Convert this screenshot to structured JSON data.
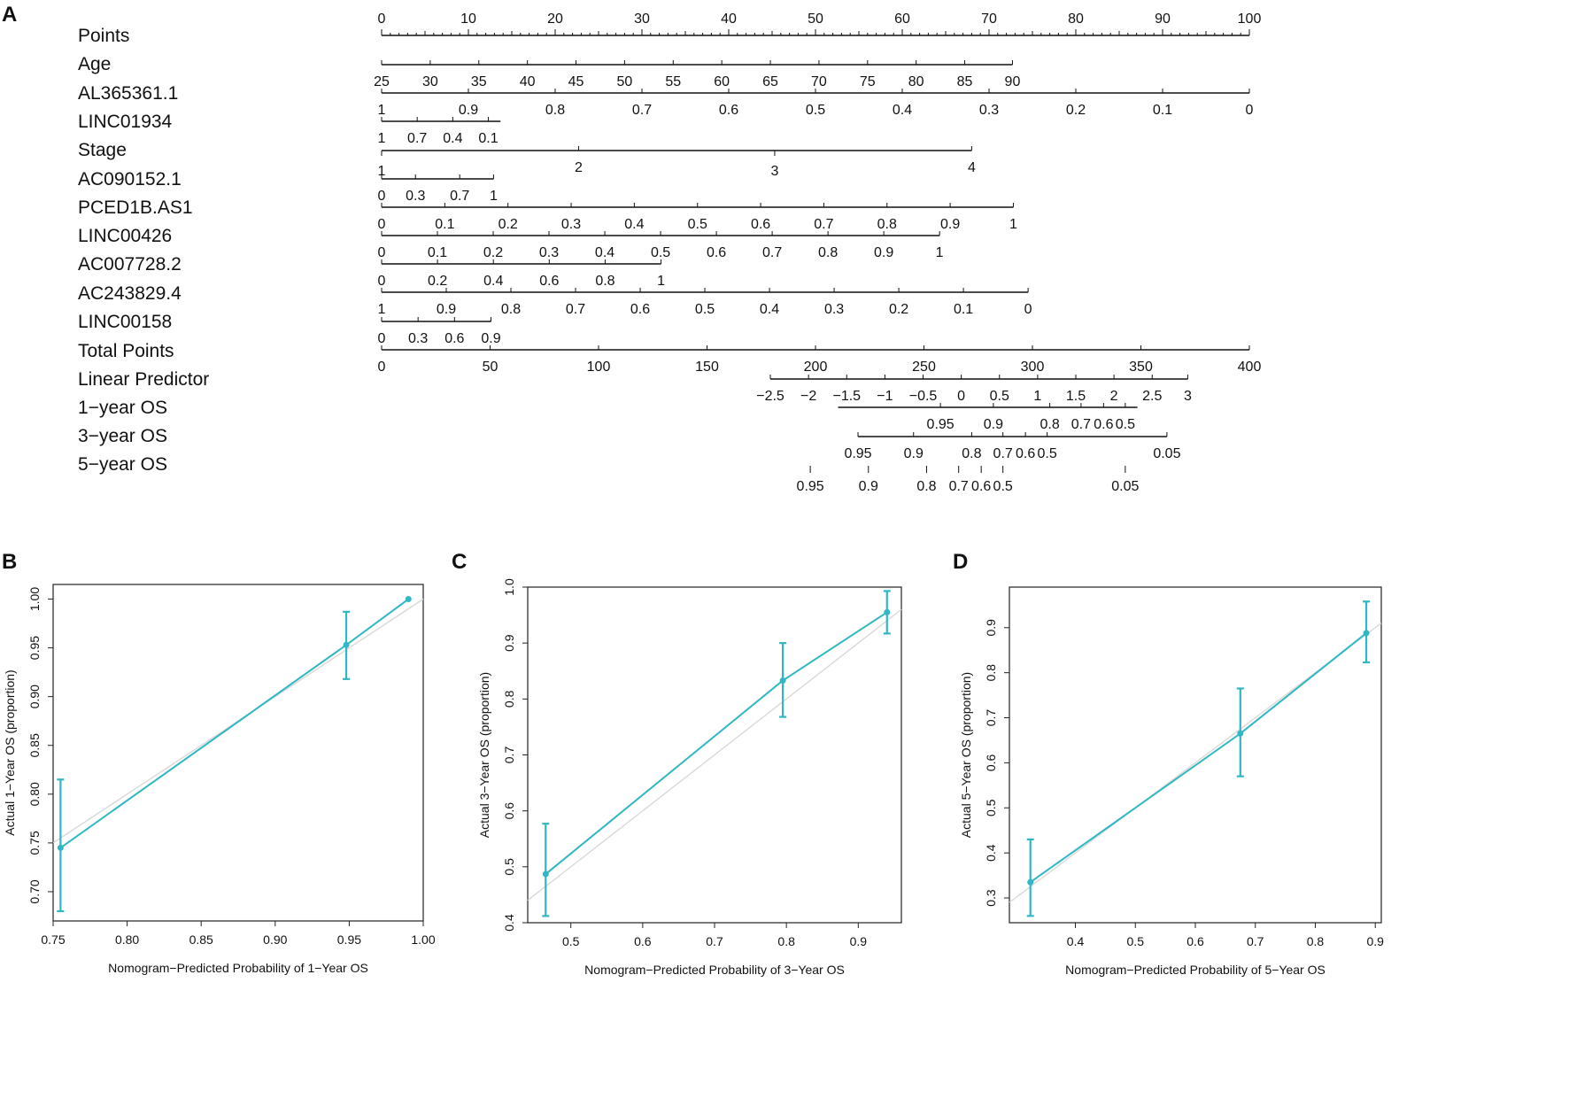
{
  "panels": {
    "a": "A",
    "b": "B",
    "c": "C",
    "d": "D"
  },
  "nomogram": {
    "rows": [
      {
        "label": "Points",
        "lo": 0,
        "hi": 100,
        "ticks": [
          {
            "v": 0,
            "t": "0"
          },
          {
            "v": 10,
            "t": "10"
          },
          {
            "v": 20,
            "t": "20"
          },
          {
            "v": 30,
            "t": "30"
          },
          {
            "v": 40,
            "t": "40"
          },
          {
            "v": 50,
            "t": "50"
          },
          {
            "v": 60,
            "t": "60"
          },
          {
            "v": 70,
            "t": "70"
          },
          {
            "v": 80,
            "t": "80"
          },
          {
            "v": 90,
            "t": "90"
          },
          {
            "v": 100,
            "t": "100"
          }
        ]
      },
      {
        "label": "Age",
        "lo": 0,
        "hi": 72.7,
        "ticks": [
          {
            "v": 0,
            "t": "25"
          },
          {
            "v": 5.6,
            "t": "30"
          },
          {
            "v": 11.2,
            "t": "35"
          },
          {
            "v": 16.8,
            "t": "40"
          },
          {
            "v": 22.4,
            "t": "45"
          },
          {
            "v": 28,
            "t": "50"
          },
          {
            "v": 33.6,
            "t": "55"
          },
          {
            "v": 39.2,
            "t": "60"
          },
          {
            "v": 44.8,
            "t": "65"
          },
          {
            "v": 50.4,
            "t": "70"
          },
          {
            "v": 56,
            "t": "75"
          },
          {
            "v": 61.6,
            "t": "80"
          },
          {
            "v": 67.2,
            "t": "85"
          },
          {
            "v": 72.7,
            "t": "90"
          }
        ]
      },
      {
        "label": "AL365361.1",
        "lo": 0,
        "hi": 100,
        "ticks": [
          {
            "v": 0,
            "t": "1"
          },
          {
            "v": 10,
            "t": "0.9"
          },
          {
            "v": 20,
            "t": "0.8"
          },
          {
            "v": 30,
            "t": "0.7"
          },
          {
            "v": 40,
            "t": "0.6"
          },
          {
            "v": 50,
            "t": "0.5"
          },
          {
            "v": 60,
            "t": "0.4"
          },
          {
            "v": 70,
            "t": "0.3"
          },
          {
            "v": 80,
            "t": "0.2"
          },
          {
            "v": 90,
            "t": "0.1"
          },
          {
            "v": 100,
            "t": "0"
          }
        ]
      },
      {
        "label": "LINC01934",
        "lo": 0,
        "hi": 13.7,
        "ticks": [
          {
            "v": 0,
            "t": "1"
          },
          {
            "v": 4.1,
            "t": "0.7"
          },
          {
            "v": 8.2,
            "t": "0.4"
          },
          {
            "v": 12.3,
            "t": "0.1"
          }
        ]
      },
      {
        "label": "Stage",
        "lo": 0,
        "hi": 68,
        "ticks": [
          {
            "v": 0,
            "t": "1",
            "pos": "below"
          },
          {
            "v": 22.7,
            "t": "2",
            "pos": "above"
          },
          {
            "v": 45.3,
            "t": "3",
            "pos": "below"
          },
          {
            "v": 68,
            "t": "4",
            "pos": "above"
          }
        ]
      },
      {
        "label": "AC090152.1",
        "lo": 0,
        "hi": 12.9,
        "ticks": [
          {
            "v": 0,
            "t": "0"
          },
          {
            "v": 3.9,
            "t": "0.3"
          },
          {
            "v": 9,
            "t": "0.7"
          },
          {
            "v": 12.9,
            "t": "1"
          }
        ]
      },
      {
        "label": "PCED1B.AS1",
        "lo": 0,
        "hi": 72.8,
        "ticks": [
          {
            "v": 0,
            "t": "0"
          },
          {
            "v": 7.28,
            "t": "0.1"
          },
          {
            "v": 14.56,
            "t": "0.2"
          },
          {
            "v": 21.84,
            "t": "0.3"
          },
          {
            "v": 29.12,
            "t": "0.4"
          },
          {
            "v": 36.4,
            "t": "0.5"
          },
          {
            "v": 43.68,
            "t": "0.6"
          },
          {
            "v": 50.96,
            "t": "0.7"
          },
          {
            "v": 58.24,
            "t": "0.8"
          },
          {
            "v": 65.52,
            "t": "0.9"
          },
          {
            "v": 72.8,
            "t": "1"
          }
        ]
      },
      {
        "label": "LINC00426",
        "lo": 0,
        "hi": 64.3,
        "ticks": [
          {
            "v": 0,
            "t": "0"
          },
          {
            "v": 6.43,
            "t": "0.1"
          },
          {
            "v": 12.86,
            "t": "0.2"
          },
          {
            "v": 19.29,
            "t": "0.3"
          },
          {
            "v": 25.72,
            "t": "0.4"
          },
          {
            "v": 32.15,
            "t": "0.5"
          },
          {
            "v": 38.58,
            "t": "0.6"
          },
          {
            "v": 45.01,
            "t": "0.7"
          },
          {
            "v": 51.44,
            "t": "0.8"
          },
          {
            "v": 57.87,
            "t": "0.9"
          },
          {
            "v": 64.3,
            "t": "1"
          }
        ]
      },
      {
        "label": "AC007728.2",
        "lo": 0,
        "hi": 32.2,
        "ticks": [
          {
            "v": 0,
            "t": "0"
          },
          {
            "v": 6.44,
            "t": "0.2"
          },
          {
            "v": 12.88,
            "t": "0.4"
          },
          {
            "v": 19.32,
            "t": "0.6"
          },
          {
            "v": 25.76,
            "t": "0.8"
          },
          {
            "v": 32.2,
            "t": "1"
          }
        ]
      },
      {
        "label": "AC243829.4",
        "lo": 0,
        "hi": 74.5,
        "ticks": [
          {
            "v": 0,
            "t": "1"
          },
          {
            "v": 7.45,
            "t": "0.9"
          },
          {
            "v": 14.9,
            "t": "0.8"
          },
          {
            "v": 22.35,
            "t": "0.7"
          },
          {
            "v": 29.8,
            "t": "0.6"
          },
          {
            "v": 37.25,
            "t": "0.5"
          },
          {
            "v": 44.7,
            "t": "0.4"
          },
          {
            "v": 52.15,
            "t": "0.3"
          },
          {
            "v": 59.6,
            "t": "0.2"
          },
          {
            "v": 67.05,
            "t": "0.1"
          },
          {
            "v": 74.5,
            "t": "0"
          }
        ]
      },
      {
        "label": "LINC00158",
        "lo": 0,
        "hi": 12.6,
        "ticks": [
          {
            "v": 0,
            "t": "0"
          },
          {
            "v": 4.2,
            "t": "0.3"
          },
          {
            "v": 8.4,
            "t": "0.6"
          },
          {
            "v": 12.6,
            "t": "0.9"
          }
        ]
      },
      {
        "label": "Total Points",
        "lo": 0,
        "hi": 100,
        "ticks": [
          {
            "v": 0,
            "t": "0"
          },
          {
            "v": 12.5,
            "t": "50"
          },
          {
            "v": 25,
            "t": "100"
          },
          {
            "v": 37.5,
            "t": "150"
          },
          {
            "v": 50,
            "t": "200"
          },
          {
            "v": 62.5,
            "t": "250"
          },
          {
            "v": 75,
            "t": "300"
          },
          {
            "v": 87.5,
            "t": "350"
          },
          {
            "v": 100,
            "t": "400"
          }
        ]
      },
      {
        "label": "Linear Predictor",
        "lo": 44.8,
        "hi": 92.9,
        "ticks": [
          {
            "v": 44.8,
            "t": "−2.5"
          },
          {
            "v": 49.2,
            "t": "−2"
          },
          {
            "v": 53.6,
            "t": "−1.5"
          },
          {
            "v": 58,
            "t": "−1"
          },
          {
            "v": 62.4,
            "t": "−0.5"
          },
          {
            "v": 66.8,
            "t": "0"
          },
          {
            "v": 71.2,
            "t": "0.5"
          },
          {
            "v": 75.6,
            "t": "1"
          },
          {
            "v": 80,
            "t": "1.5"
          },
          {
            "v": 84.4,
            "t": "2"
          },
          {
            "v": 88.8,
            "t": "2.5"
          },
          {
            "v": 92.9,
            "t": "3"
          }
        ]
      },
      {
        "label": "1−year OS",
        "lo": 52.6,
        "hi": 87.1,
        "ticks": [
          {
            "v": 64.4,
            "t": "0.95"
          },
          {
            "v": 70.5,
            "t": "0.9"
          },
          {
            "v": 77,
            "t": "0.8"
          },
          {
            "v": 80.6,
            "t": "0.7"
          },
          {
            "v": 83.2,
            "t": "0.6"
          },
          {
            "v": 85.7,
            "t": "0.5"
          }
        ]
      },
      {
        "label": "3−year OS",
        "lo": 54.9,
        "hi": 90.5,
        "ticks": [
          {
            "v": 54.9,
            "t": "0.95"
          },
          {
            "v": 61.3,
            "t": "0.9"
          },
          {
            "v": 68,
            "t": "0.8"
          },
          {
            "v": 71.6,
            "t": "0.7"
          },
          {
            "v": 74.2,
            "t": "0.6"
          },
          {
            "v": 76.7,
            "t": "0.5"
          },
          {
            "v": 90.5,
            "t": "0.05"
          }
        ]
      },
      {
        "label": "5−year OS",
        "lo": 49.4,
        "hi": 85.7,
        "ticks": [
          {
            "v": 49.4,
            "t": "0.95"
          },
          {
            "v": 56.1,
            "t": "0.9"
          },
          {
            "v": 62.8,
            "t": "0.8"
          },
          {
            "v": 66.5,
            "t": "0.7"
          },
          {
            "v": 69.1,
            "t": "0.6"
          },
          {
            "v": 71.6,
            "t": "0.5"
          },
          {
            "v": 85.7,
            "t": "0.05"
          }
        ]
      }
    ]
  },
  "chart_data": [
    {
      "panel": "B",
      "type": "scatter",
      "xlabel": "Nomogram−Predicted Probability of 1−Year OS",
      "ylabel": "Actual 1−Year OS (proportion)",
      "xlim": [
        0.75,
        1.0
      ],
      "ylim": [
        0.67,
        1.015
      ],
      "xticks": [
        {
          "v": 0.75,
          "t": "0.75"
        },
        {
          "v": 0.8,
          "t": "0.80"
        },
        {
          "v": 0.85,
          "t": "0.85"
        },
        {
          "v": 0.9,
          "t": "0.90"
        },
        {
          "v": 0.95,
          "t": "0.95"
        },
        {
          "v": 1.0,
          "t": "1.00"
        }
      ],
      "yticks": [
        {
          "v": 0.7,
          "t": "0.70"
        },
        {
          "v": 0.75,
          "t": "0.75"
        },
        {
          "v": 0.8,
          "t": "0.80"
        },
        {
          "v": 0.85,
          "t": "0.85"
        },
        {
          "v": 0.9,
          "t": "0.90"
        },
        {
          "v": 0.95,
          "t": "0.95"
        },
        {
          "v": 1.0,
          "t": "1.00"
        }
      ],
      "points": [
        {
          "x": 0.755,
          "y": 0.745,
          "lo": 0.68,
          "hi": 0.815
        },
        {
          "x": 0.948,
          "y": 0.953,
          "lo": 0.918,
          "hi": 0.987
        },
        {
          "x": 0.99,
          "y": 1.0,
          "lo": 1.0,
          "hi": 1.0
        }
      ],
      "line_color": "#2fb7c4",
      "ideal_color": "#d8d8d8"
    },
    {
      "panel": "C",
      "type": "scatter",
      "xlabel": "Nomogram−Predicted Probability of 3−Year OS",
      "ylabel": "Actual 3−Year OS (proportion)",
      "xlim": [
        0.44,
        0.96
      ],
      "ylim": [
        0.4,
        1.0
      ],
      "xticks": [
        {
          "v": 0.5,
          "t": "0.5"
        },
        {
          "v": 0.6,
          "t": "0.6"
        },
        {
          "v": 0.7,
          "t": "0.7"
        },
        {
          "v": 0.8,
          "t": "0.8"
        },
        {
          "v": 0.9,
          "t": "0.9"
        }
      ],
      "yticks": [
        {
          "v": 0.4,
          "t": "0.4"
        },
        {
          "v": 0.5,
          "t": "0.5"
        },
        {
          "v": 0.6,
          "t": "0.6"
        },
        {
          "v": 0.7,
          "t": "0.7"
        },
        {
          "v": 0.8,
          "t": "0.8"
        },
        {
          "v": 0.9,
          "t": "0.9"
        },
        {
          "v": 1.0,
          "t": "1.0"
        }
      ],
      "points": [
        {
          "x": 0.465,
          "y": 0.487,
          "lo": 0.412,
          "hi": 0.577
        },
        {
          "x": 0.795,
          "y": 0.833,
          "lo": 0.768,
          "hi": 0.9
        },
        {
          "x": 0.94,
          "y": 0.955,
          "lo": 0.917,
          "hi": 0.993
        }
      ],
      "line_color": "#2fb7c4",
      "ideal_color": "#d8d8d8"
    },
    {
      "panel": "D",
      "type": "scatter",
      "xlabel": "Nomogram−Predicted Probability of 5−Year OS",
      "ylabel": "Actual 5−Year OS (proportion)",
      "xlim": [
        0.29,
        0.91
      ],
      "ylim": [
        0.245,
        0.99
      ],
      "xticks": [
        {
          "v": 0.4,
          "t": "0.4"
        },
        {
          "v": 0.5,
          "t": "0.5"
        },
        {
          "v": 0.6,
          "t": "0.6"
        },
        {
          "v": 0.7,
          "t": "0.7"
        },
        {
          "v": 0.8,
          "t": "0.8"
        },
        {
          "v": 0.9,
          "t": "0.9"
        }
      ],
      "yticks": [
        {
          "v": 0.3,
          "t": "0.3"
        },
        {
          "v": 0.4,
          "t": "0.4"
        },
        {
          "v": 0.5,
          "t": "0.5"
        },
        {
          "v": 0.6,
          "t": "0.6"
        },
        {
          "v": 0.7,
          "t": "0.7"
        },
        {
          "v": 0.8,
          "t": "0.8"
        },
        {
          "v": 0.9,
          "t": "0.9"
        }
      ],
      "points": [
        {
          "x": 0.325,
          "y": 0.335,
          "lo": 0.26,
          "hi": 0.43
        },
        {
          "x": 0.675,
          "y": 0.665,
          "lo": 0.57,
          "hi": 0.765
        },
        {
          "x": 0.885,
          "y": 0.888,
          "lo": 0.823,
          "hi": 0.958
        }
      ],
      "line_color": "#2fb7c4",
      "ideal_color": "#d8d8d8"
    }
  ]
}
